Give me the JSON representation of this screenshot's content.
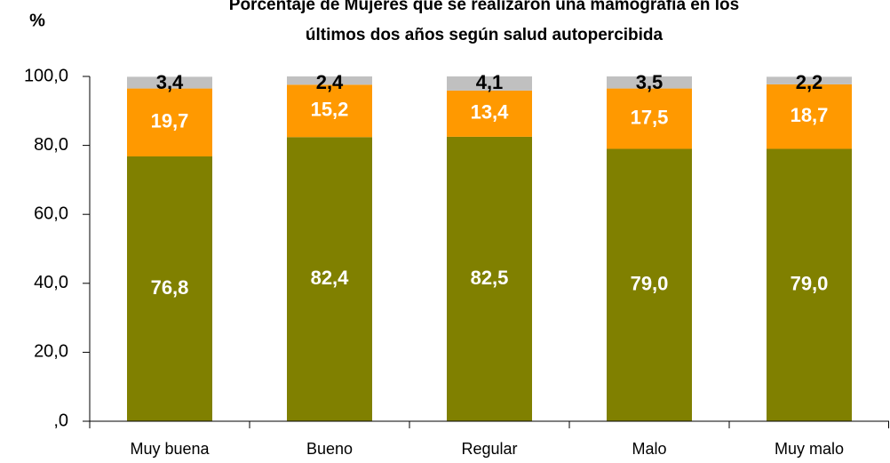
{
  "chart_data": {
    "type": "stacked_bar",
    "title": [
      "Porcentaje de Mujeres que se realizaron una mamografía en los",
      "últimos dos años según salud autopercibida"
    ],
    "y_label": "%",
    "categories": [
      "Muy buena",
      "Bueno",
      "Regular",
      "Malo",
      "Muy malo"
    ],
    "series": [
      {
        "color": "#808000",
        "label_color": "#ffffff",
        "values": [
          76.8,
          82.4,
          82.5,
          79.0,
          79.0
        ],
        "value_labels": [
          "76,8",
          "82,4",
          "82,5",
          "79,0",
          "79,0"
        ]
      },
      {
        "color": "#ff9900",
        "label_color": "#ffffff",
        "values": [
          19.7,
          15.2,
          13.4,
          17.5,
          18.7
        ],
        "value_labels": [
          "19,7",
          "15,2",
          "13,4",
          "17,5",
          "18,7"
        ]
      },
      {
        "color": "#c0c0c0",
        "label_color": "#000000",
        "values": [
          3.4,
          2.4,
          4.1,
          3.5,
          2.2
        ],
        "value_labels": [
          "3,4",
          "2,4",
          "4,1",
          "3,5",
          "2,2"
        ]
      }
    ],
    "ylim": [
      0,
      100
    ],
    "yticks": [
      {
        "value": 0,
        "label": ",0"
      },
      {
        "value": 20,
        "label": "20,0"
      },
      {
        "value": 40,
        "label": "40,0"
      },
      {
        "value": 60,
        "label": "60,0"
      },
      {
        "value": 80,
        "label": "80,0"
      },
      {
        "value": 100,
        "label": "100,0"
      }
    ]
  }
}
